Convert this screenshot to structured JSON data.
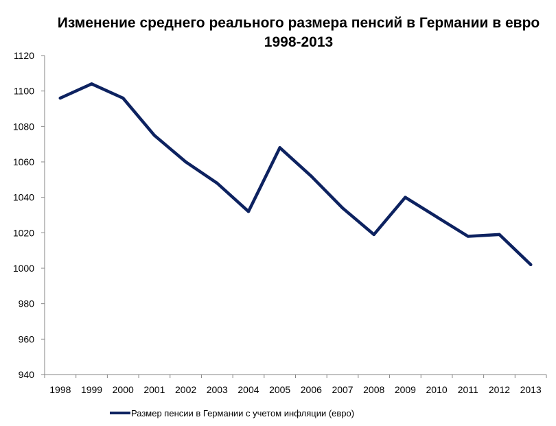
{
  "chart_data": {
    "type": "line",
    "title_line1": "Изменение среднего реального размера пенсий в Германии в евро",
    "title_line2": "1998-2013",
    "xlabel": "",
    "ylabel": "",
    "x": [
      "1998",
      "1999",
      "2000",
      "2001",
      "2002",
      "2003",
      "2004",
      "2005",
      "2006",
      "2007",
      "2008",
      "2009",
      "2010",
      "2011",
      "2012",
      "2013"
    ],
    "ylim": [
      940,
      1120
    ],
    "yticks": [
      940,
      960,
      980,
      1000,
      1020,
      1040,
      1060,
      1080,
      1100,
      1120
    ],
    "series": [
      {
        "name": "Размер пенсии в Германии с учетом инфляции (евро)",
        "color": "#0d2260",
        "values": [
          1096,
          1104,
          1096,
          1075,
          1060,
          1048,
          1032,
          1068,
          1052,
          1034,
          1019,
          1040,
          1029,
          1018,
          1019,
          1002
        ]
      }
    ],
    "grid": false,
    "legend_position": "bottom"
  }
}
